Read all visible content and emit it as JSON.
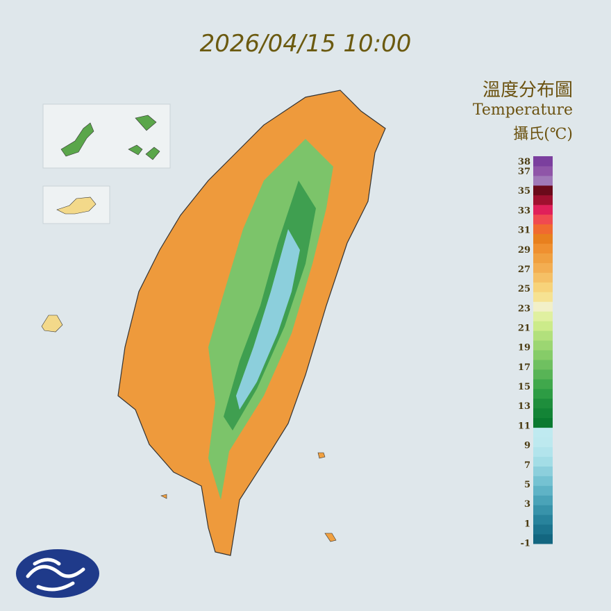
{
  "header": {
    "title": "2026/04/15 10:00"
  },
  "legend": {
    "title": "溫度分布圖",
    "subtitle": "Temperature",
    "unit": "攝氏(℃)",
    "ylim": [
      -1,
      38.6
    ],
    "ticks": [
      38,
      37,
      35,
      33,
      31,
      29,
      27,
      25,
      23,
      21,
      19,
      17,
      15,
      13,
      11,
      9,
      7,
      5,
      3,
      1,
      -1
    ],
    "colors": [
      "#136680",
      "#1c748e",
      "#28839c",
      "#3893aa",
      "#4aa3b8",
      "#5fb3c6",
      "#75c2d2",
      "#8ccfdc",
      "#a3dde6",
      "#b2e4ec",
      "#bde9ef",
      "#bfeaf0",
      "#0a7a30",
      "#138436",
      "#1e8e3c",
      "#2d9c44",
      "#40a84c",
      "#58b456",
      "#6fc060",
      "#86cc68",
      "#9cd672",
      "#b2e07c",
      "#cceb8a",
      "#e0f0a0",
      "#f2f0c8",
      "#f6e292",
      "#f7d37a",
      "#f5c066",
      "#f3ae52",
      "#f0a040",
      "#ef9030",
      "#e8801e",
      "#f06a30",
      "#f04a50",
      "#e0205a",
      "#a0102f",
      "#6b0a1a",
      "#a078b8",
      "#8f55a8",
      "#7b3f9e"
    ]
  }
}
